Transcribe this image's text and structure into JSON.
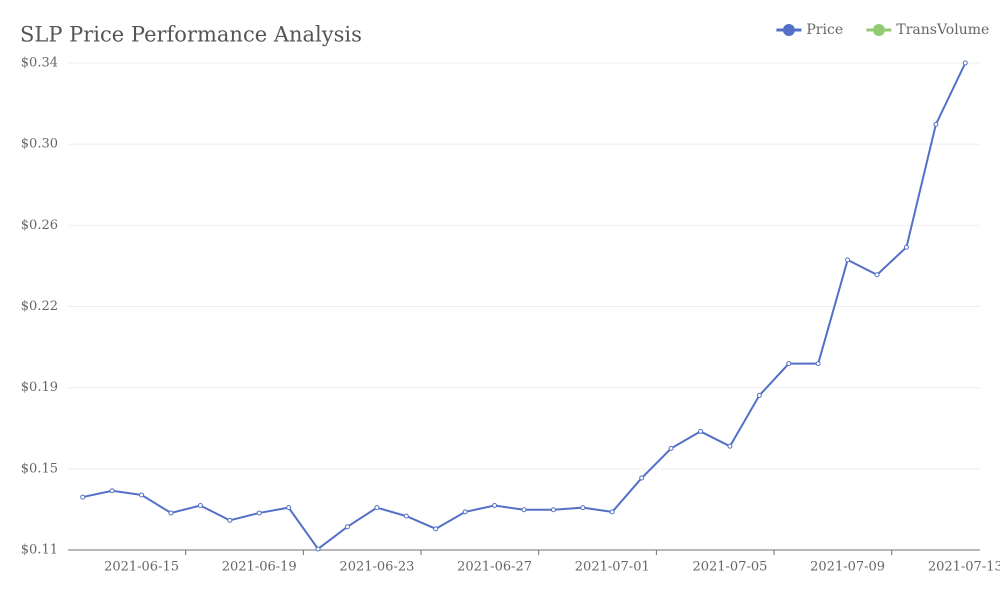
{
  "chart_data": {
    "type": "line",
    "title": "SLP Price Performance Analysis",
    "categories": [
      null,
      null,
      "2021-06-15",
      null,
      null,
      null,
      "2021-06-19",
      null,
      null,
      null,
      "2021-06-23",
      null,
      null,
      null,
      "2021-06-27",
      null,
      null,
      null,
      "2021-07-01",
      null,
      null,
      null,
      "2021-07-05",
      null,
      null,
      null,
      "2021-07-09",
      null,
      null,
      null,
      "2021-07-13"
    ],
    "series": [
      {
        "name": "Price",
        "color": "#5470c6",
        "values": [
          0.135,
          0.138,
          0.136,
          0.1275,
          0.131,
          0.124,
          0.1275,
          0.13,
          0.1105,
          0.121,
          0.13,
          0.126,
          0.12,
          0.128,
          0.131,
          0.129,
          0.129,
          0.13,
          0.128,
          0.144,
          0.158,
          0.166,
          0.159,
          0.183,
          0.198,
          0.198,
          0.247,
          0.24,
          0.253,
          0.311,
          0.34
        ]
      },
      {
        "name": "TransVolume",
        "color": "#91cc75",
        "values": [
          null,
          null,
          null,
          null,
          null,
          null,
          null,
          null,
          null,
          null,
          null,
          null,
          null,
          null,
          null,
          null,
          null,
          null,
          null,
          null,
          null,
          null,
          null,
          null,
          null,
          null,
          null,
          null,
          null,
          null,
          null
        ]
      }
    ],
    "ylim": [
      0.11,
      0.34
    ],
    "yticks": [
      {
        "value": 0.11,
        "label": "$0.11"
      },
      {
        "value": 0.14833,
        "label": "$0.15"
      },
      {
        "value": 0.18667,
        "label": "$0.19"
      },
      {
        "value": 0.225,
        "label": "$0.22"
      },
      {
        "value": 0.26333,
        "label": "$0.26"
      },
      {
        "value": 0.30167,
        "label": "$0.30"
      },
      {
        "value": 0.34,
        "label": "$0.34"
      }
    ],
    "grid": true,
    "legend": "top-right"
  }
}
